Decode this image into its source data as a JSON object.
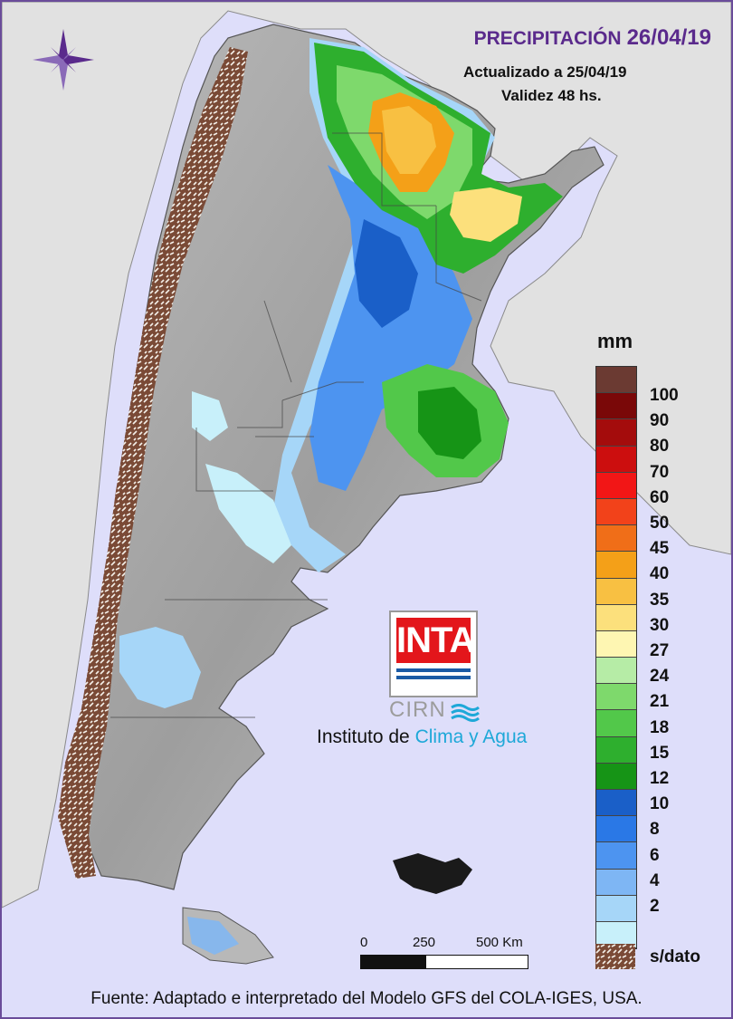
{
  "title": {
    "main": "PRECIPITACIÓN",
    "date": "26/04/19"
  },
  "updated": "Actualizado a 25/04/19",
  "validity": "Validez 48 hs.",
  "legend": {
    "unit": "mm",
    "scale": [
      {
        "value": "100",
        "color": "#6b3a32"
      },
      {
        "value": "90",
        "color": "#7a0808"
      },
      {
        "value": "80",
        "color": "#a40c0c"
      },
      {
        "value": "70",
        "color": "#cc0e0e"
      },
      {
        "value": "60",
        "color": "#f21616"
      },
      {
        "value": "50",
        "color": "#f2421a"
      },
      {
        "value": "45",
        "color": "#f06e18"
      },
      {
        "value": "40",
        "color": "#f4a018"
      },
      {
        "value": "35",
        "color": "#f8c042"
      },
      {
        "value": "30",
        "color": "#fce07c"
      },
      {
        "value": "27",
        "color": "#fef6b2"
      },
      {
        "value": "24",
        "color": "#b6eca6"
      },
      {
        "value": "21",
        "color": "#7ed96c"
      },
      {
        "value": "18",
        "color": "#52c84a"
      },
      {
        "value": "15",
        "color": "#2eaf2e"
      },
      {
        "value": "12",
        "color": "#169416"
      },
      {
        "value": "10",
        "color": "#1a5fc8"
      },
      {
        "value": "8",
        "color": "#2a78e6"
      },
      {
        "value": "6",
        "color": "#4d94f0"
      },
      {
        "value": "4",
        "color": "#7eb6f4"
      },
      {
        "value": "2",
        "color": "#a6d6f8"
      },
      {
        "value": "",
        "color": "#c8f0fa"
      }
    ],
    "no_data_label": "s/dato",
    "no_data_color": "#7a4a36"
  },
  "scale_bar": {
    "labels": [
      "0",
      "250",
      "500 Km"
    ]
  },
  "logo": {
    "text": "INTA",
    "cirn": "CIRN",
    "institute": "Instituto de",
    "institute_accent": "Clima y Agua"
  },
  "footer": "Fuente: Adaptado e interpretado del Modelo GFS del COLA-IGES, USA."
}
